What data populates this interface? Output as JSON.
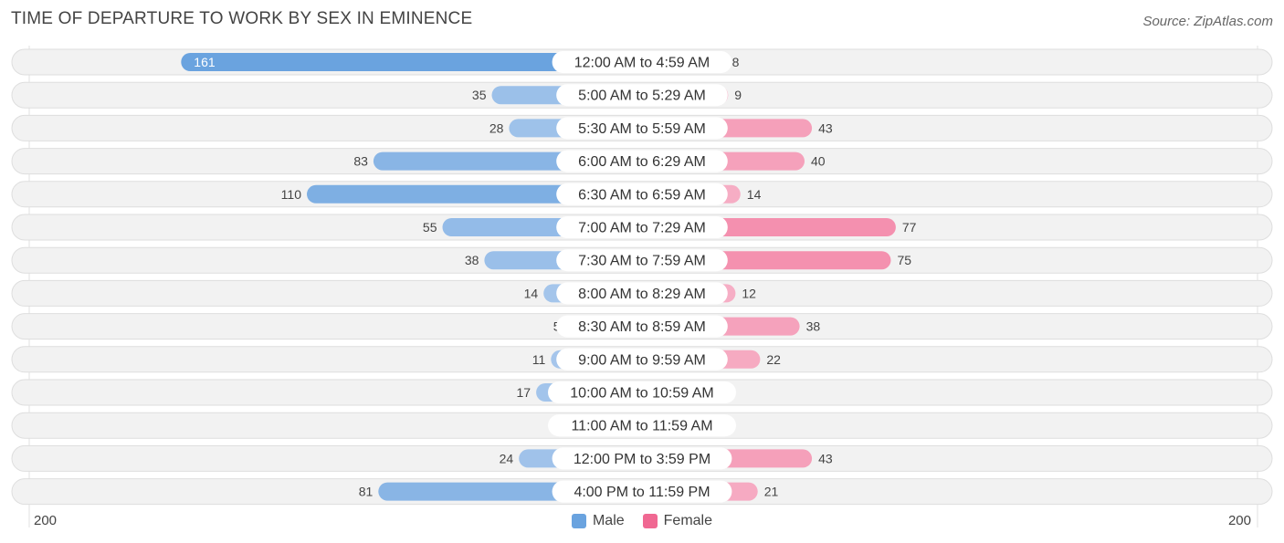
{
  "header": {
    "title": "TIME OF DEPARTURE TO WORK BY SEX IN EMINENCE",
    "source": "Source: ZipAtlas.com"
  },
  "colors": {
    "male_light": "#a9c8ec",
    "male_dark": "#6aa3df",
    "female_light": "#f7b4c9",
    "female_dark": "#f06892",
    "row_bg": "#f2f2f2",
    "row_border": "#dedede"
  },
  "chart_data": {
    "type": "bar",
    "orientation": "horizontal-diverging",
    "categories": [
      "12:00 AM to 4:59 AM",
      "5:00 AM to 5:29 AM",
      "5:30 AM to 5:59 AM",
      "6:00 AM to 6:29 AM",
      "6:30 AM to 6:59 AM",
      "7:00 AM to 7:29 AM",
      "7:30 AM to 7:59 AM",
      "8:00 AM to 8:29 AM",
      "8:30 AM to 8:59 AM",
      "9:00 AM to 9:59 AM",
      "10:00 AM to 10:59 AM",
      "11:00 AM to 11:59 AM",
      "12:00 PM to 3:59 PM",
      "4:00 PM to 11:59 PM"
    ],
    "series": [
      {
        "name": "Male",
        "values": [
          161,
          35,
          28,
          83,
          110,
          55,
          38,
          14,
          5,
          11,
          17,
          0,
          24,
          81
        ]
      },
      {
        "name": "Female",
        "values": [
          8,
          9,
          43,
          40,
          14,
          77,
          75,
          12,
          38,
          22,
          0,
          0,
          43,
          21
        ]
      }
    ],
    "axis": {
      "min_label": "200",
      "max_label": "200",
      "max": 200
    },
    "legend": {
      "position": "bottom-center",
      "items": [
        "Male",
        "Female"
      ]
    }
  }
}
